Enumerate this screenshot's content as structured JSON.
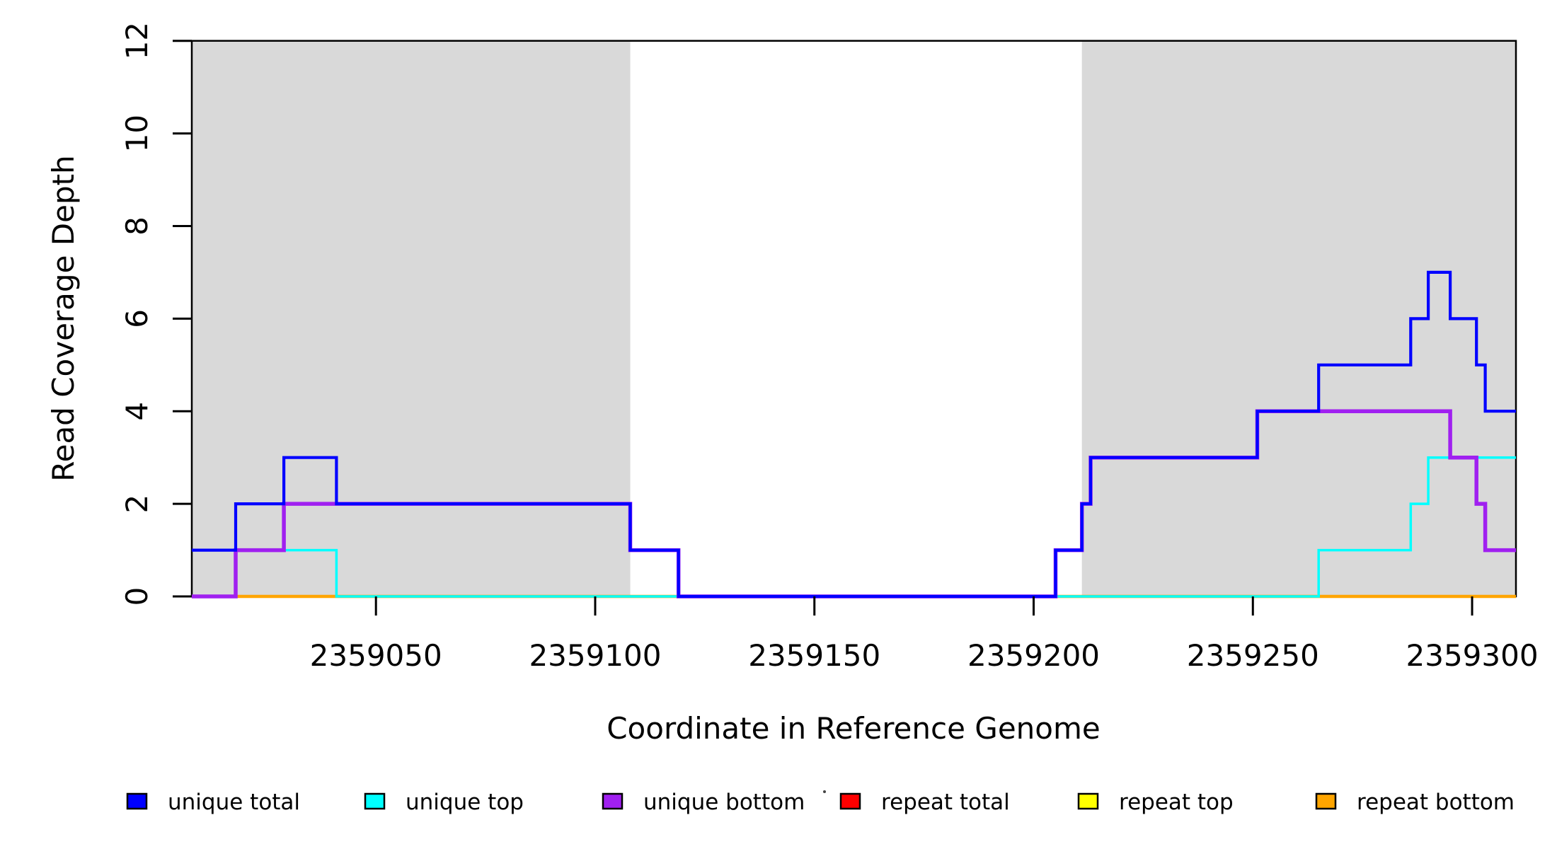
{
  "figure": {
    "xlabel": "Coordinate in Reference Genome",
    "ylabel": "Read Coverage Depth"
  },
  "chart_data": {
    "type": "line",
    "subtype": "step-coverage",
    "title": "",
    "xlabel": "Coordinate in Reference Genome",
    "ylabel": "Read Coverage Depth",
    "xlim": [
      2359008,
      2359310
    ],
    "ylim": [
      0,
      12
    ],
    "x_ticks": [
      2359050,
      2359100,
      2359150,
      2359200,
      2359250,
      2359300
    ],
    "y_ticks": [
      0,
      2,
      4,
      6,
      8,
      10,
      12
    ],
    "grid": false,
    "legend_position": "bottom",
    "background_color": "#FFFFFF",
    "shaded_regions": {
      "color": "#D9D9D9",
      "ranges": [
        [
          2359008,
          2359108
        ],
        [
          2359211,
          2359310
        ]
      ]
    },
    "draw_order": [
      "repeat total",
      "repeat top",
      "repeat bottom",
      "unique top",
      "unique bottom",
      "unique total"
    ],
    "series": [
      {
        "name": "unique total",
        "color": "#0000FF",
        "lwd": 4.2,
        "points": [
          [
            2359008,
            1
          ],
          [
            2359018,
            2
          ],
          [
            2359029,
            3
          ],
          [
            2359041,
            2
          ],
          [
            2359108,
            1
          ],
          [
            2359119,
            0
          ],
          [
            2359205,
            1
          ],
          [
            2359211,
            2
          ],
          [
            2359213,
            3
          ],
          [
            2359251,
            4
          ],
          [
            2359265,
            5
          ],
          [
            2359286,
            6
          ],
          [
            2359290,
            7
          ],
          [
            2359295,
            6
          ],
          [
            2359301,
            5
          ],
          [
            2359303,
            4
          ]
        ]
      },
      {
        "name": "unique top",
        "color": "#00FFFF",
        "lwd": 3.5,
        "points": [
          [
            2359008,
            1
          ],
          [
            2359041,
            0
          ],
          [
            2359265,
            1
          ],
          [
            2359286,
            2
          ],
          [
            2359290,
            3
          ]
        ]
      },
      {
        "name": "unique bottom",
        "color": "#A020F0",
        "lwd": 5.5,
        "points": [
          [
            2359008,
            0
          ],
          [
            2359018,
            1
          ],
          [
            2359029,
            2
          ],
          [
            2359108,
            1
          ],
          [
            2359119,
            0
          ],
          [
            2359205,
            1
          ],
          [
            2359211,
            2
          ],
          [
            2359213,
            3
          ],
          [
            2359251,
            4
          ],
          [
            2359295,
            3
          ],
          [
            2359301,
            2
          ],
          [
            2359303,
            1
          ]
        ]
      },
      {
        "name": "repeat total",
        "color": "#FF0000",
        "lwd": 4,
        "points": [
          [
            2359008,
            0
          ]
        ]
      },
      {
        "name": "repeat top",
        "color": "#FFFF00",
        "lwd": 4,
        "points": [
          [
            2359008,
            0
          ]
        ]
      },
      {
        "name": "repeat bottom",
        "color": "#FFA500",
        "lwd": 4.5,
        "points": [
          [
            2359008,
            0
          ]
        ]
      }
    ]
  },
  "legend": {
    "items": [
      {
        "label": "unique total",
        "color": "#0000FF"
      },
      {
        "label": "unique top",
        "color": "#00FFFF"
      },
      {
        "label": "unique bottom",
        "color": "#A020F0"
      },
      {
        "label": "repeat total",
        "color": "#FF0000"
      },
      {
        "label": "repeat top",
        "color": "#FFFF00"
      },
      {
        "label": "repeat bottom",
        "color": "#FFA500"
      }
    ]
  }
}
